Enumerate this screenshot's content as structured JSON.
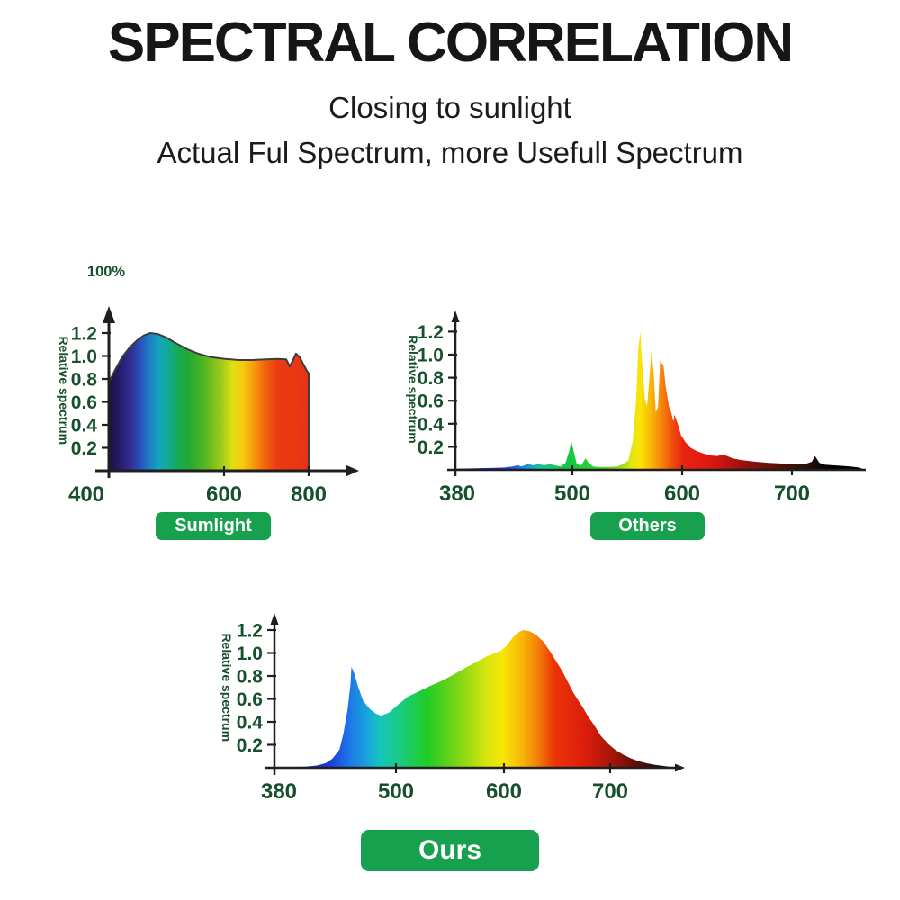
{
  "header": {
    "title": "SPECTRAL CORRELATION",
    "subtitle1": "Closing to sunlight",
    "subtitle2": "Actual Ful Spectrum, more Usefull Spectrum"
  },
  "colors": {
    "label_green": "#17502c",
    "button_green": "#17a04d",
    "axis": "#1f1f1f",
    "background": "#ffffff"
  },
  "chart_data": [
    {
      "id": "sunlight",
      "type": "area",
      "label": "Sumlight",
      "ylabel": "Relative spectrum",
      "top_left_label": "100%",
      "ylim": [
        0,
        1.3
      ],
      "y_ticks": [
        "1.2",
        "1.0",
        "0.8",
        "0.6",
        "0.4",
        "0.2"
      ],
      "x_ticks": [
        "400",
        "600",
        "800"
      ],
      "points": [
        [
          400,
          0.77
        ],
        [
          411,
          0.88
        ],
        [
          423,
          0.99
        ],
        [
          437,
          1.08
        ],
        [
          450,
          1.14
        ],
        [
          461,
          1.18
        ],
        [
          472,
          1.2
        ],
        [
          486,
          1.19
        ],
        [
          500,
          1.16
        ],
        [
          517,
          1.11
        ],
        [
          536,
          1.06
        ],
        [
          555,
          1.02
        ],
        [
          577,
          0.99
        ],
        [
          602,
          0.975
        ],
        [
          634,
          0.965
        ],
        [
          666,
          0.965
        ],
        [
          698,
          0.97
        ],
        [
          726,
          0.975
        ],
        [
          747,
          0.97
        ],
        [
          755,
          0.91
        ],
        [
          762,
          0.955
        ],
        [
          770,
          1.02
        ],
        [
          779,
          0.99
        ],
        [
          787,
          0.93
        ],
        [
          796,
          0.87
        ],
        [
          800,
          0.85
        ]
      ],
      "gradient": [
        [
          0,
          "#1b0f3e"
        ],
        [
          0.05,
          "#261a66"
        ],
        [
          0.1,
          "#2f2a8c"
        ],
        [
          0.15,
          "#2c4ab4"
        ],
        [
          0.2,
          "#1f7ac8"
        ],
        [
          0.25,
          "#14a4bc"
        ],
        [
          0.3,
          "#12ab8e"
        ],
        [
          0.35,
          "#17aa52"
        ],
        [
          0.4,
          "#22a834"
        ],
        [
          0.48,
          "#55b622"
        ],
        [
          0.56,
          "#9cc81a"
        ],
        [
          0.62,
          "#e0e012"
        ],
        [
          0.67,
          "#f6cb0e"
        ],
        [
          0.72,
          "#f7a00c"
        ],
        [
          0.78,
          "#f3650e"
        ],
        [
          0.84,
          "#ec3c12"
        ],
        [
          1,
          "#e73314"
        ]
      ]
    },
    {
      "id": "others",
      "type": "area",
      "label": "Others",
      "ylabel": "Relative spectrum",
      "ylim": [
        0,
        1.3
      ],
      "y_ticks": [
        "1.2",
        "1.0",
        "0.8",
        "0.6",
        "0.4",
        "0.2"
      ],
      "x_ticks": [
        "380",
        "500",
        "600",
        "700"
      ],
      "points": [
        [
          380,
          0.01
        ],
        [
          392,
          0.012
        ],
        [
          406,
          0.015
        ],
        [
          420,
          0.018
        ],
        [
          430,
          0.02
        ],
        [
          439,
          0.03
        ],
        [
          444,
          0.04
        ],
        [
          448,
          0.03
        ],
        [
          454,
          0.05
        ],
        [
          460,
          0.04
        ],
        [
          465,
          0.05
        ],
        [
          471,
          0.04
        ],
        [
          477,
          0.05
        ],
        [
          482,
          0.04
        ],
        [
          488,
          0.03
        ],
        [
          493,
          0.06
        ],
        [
          497,
          0.17
        ],
        [
          499,
          0.25
        ],
        [
          501,
          0.17
        ],
        [
          504,
          0.05
        ],
        [
          508,
          0.04
        ],
        [
          512,
          0.1
        ],
        [
          515,
          0.06
        ],
        [
          519,
          0.03
        ],
        [
          524,
          0.025
        ],
        [
          533,
          0.025
        ],
        [
          541,
          0.03
        ],
        [
          546,
          0.05
        ],
        [
          551,
          0.08
        ],
        [
          555,
          0.25
        ],
        [
          558,
          0.6
        ],
        [
          560,
          1.05
        ],
        [
          562,
          1.2
        ],
        [
          563,
          1.0
        ],
        [
          566,
          0.62
        ],
        [
          568,
          0.55
        ],
        [
          571,
          0.9
        ],
        [
          572,
          1.03
        ],
        [
          574,
          0.85
        ],
        [
          576,
          0.5
        ],
        [
          578,
          0.55
        ],
        [
          580,
          0.95
        ],
        [
          583,
          0.9
        ],
        [
          585,
          0.72
        ],
        [
          588,
          0.55
        ],
        [
          590,
          0.5
        ],
        [
          592,
          0.42
        ],
        [
          593,
          0.48
        ],
        [
          596,
          0.4
        ],
        [
          599,
          0.3
        ],
        [
          603,
          0.24
        ],
        [
          608,
          0.19
        ],
        [
          614,
          0.16
        ],
        [
          620,
          0.14
        ],
        [
          626,
          0.125
        ],
        [
          632,
          0.12
        ],
        [
          637,
          0.13
        ],
        [
          641,
          0.12
        ],
        [
          646,
          0.1
        ],
        [
          654,
          0.085
        ],
        [
          667,
          0.07
        ],
        [
          679,
          0.06
        ],
        [
          691,
          0.055
        ],
        [
          704,
          0.05
        ],
        [
          712,
          0.05
        ],
        [
          718,
          0.07
        ],
        [
          721,
          0.12
        ],
        [
          725,
          0.06
        ],
        [
          730,
          0.045
        ],
        [
          737,
          0.04
        ],
        [
          745,
          0.035
        ],
        [
          753,
          0.03
        ],
        [
          761,
          0.02
        ],
        [
          764,
          0.01
        ]
      ],
      "gradient": [
        [
          0,
          "#2121b4"
        ],
        [
          0.1,
          "#2233cc"
        ],
        [
          0.14,
          "#2257e0"
        ],
        [
          0.17,
          "#1b86e0"
        ],
        [
          0.2,
          "#16bba8"
        ],
        [
          0.24,
          "#1cc46a"
        ],
        [
          0.28,
          "#12c83e"
        ],
        [
          0.33,
          "#2fcc3a"
        ],
        [
          0.4,
          "#86d61c"
        ],
        [
          0.435,
          "#e6e610"
        ],
        [
          0.455,
          "#fae305"
        ],
        [
          0.48,
          "#f9b808"
        ],
        [
          0.51,
          "#f57f0a"
        ],
        [
          0.535,
          "#ef4a0d"
        ],
        [
          0.56,
          "#e8250f"
        ],
        [
          0.62,
          "#df1810"
        ],
        [
          0.66,
          "#c21511"
        ],
        [
          0.72,
          "#8e120c"
        ],
        [
          0.8,
          "#53100a"
        ],
        [
          0.87,
          "#241007"
        ],
        [
          0.92,
          "#000000"
        ],
        [
          1,
          "#000000"
        ]
      ]
    },
    {
      "id": "ours",
      "type": "area",
      "label": "Ours",
      "ylabel": "Relative spectrum",
      "ylim": [
        0,
        1.3
      ],
      "y_ticks": [
        "1.2",
        "1.0",
        "0.8",
        "0.6",
        "0.4",
        "0.2"
      ],
      "x_ticks": [
        "380",
        "500",
        "600",
        "700"
      ],
      "points": [
        [
          382,
          0
        ],
        [
          395,
          0.005
        ],
        [
          409,
          0.01
        ],
        [
          420,
          0.02
        ],
        [
          429,
          0.04
        ],
        [
          436,
          0.08
        ],
        [
          443,
          0.16
        ],
        [
          447,
          0.3
        ],
        [
          451,
          0.5
        ],
        [
          454,
          0.72
        ],
        [
          455,
          0.88
        ],
        [
          458,
          0.82
        ],
        [
          462,
          0.7
        ],
        [
          467,
          0.58
        ],
        [
          474,
          0.51
        ],
        [
          480,
          0.47
        ],
        [
          485,
          0.455
        ],
        [
          493,
          0.48
        ],
        [
          502,
          0.55
        ],
        [
          511,
          0.62
        ],
        [
          520,
          0.66
        ],
        [
          531,
          0.71
        ],
        [
          543,
          0.76
        ],
        [
          553,
          0.81
        ],
        [
          564,
          0.87
        ],
        [
          574,
          0.92
        ],
        [
          584,
          0.97
        ],
        [
          592,
          1.0
        ],
        [
          597,
          1.02
        ],
        [
          602,
          1.06
        ],
        [
          607,
          1.12
        ],
        [
          612,
          1.17
        ],
        [
          618,
          1.2
        ],
        [
          624,
          1.19
        ],
        [
          630,
          1.16
        ],
        [
          637,
          1.1
        ],
        [
          643,
          1.02
        ],
        [
          649,
          0.93
        ],
        [
          655,
          0.84
        ],
        [
          660,
          0.75
        ],
        [
          665,
          0.66
        ],
        [
          669,
          0.6
        ],
        [
          674,
          0.53
        ],
        [
          679,
          0.45
        ],
        [
          685,
          0.37
        ],
        [
          691,
          0.28
        ],
        [
          698,
          0.21
        ],
        [
          705,
          0.155
        ],
        [
          712,
          0.115
        ],
        [
          719,
          0.085
        ],
        [
          726,
          0.06
        ],
        [
          734,
          0.04
        ],
        [
          742,
          0.025
        ],
        [
          751,
          0.015
        ],
        [
          757,
          0.008
        ],
        [
          759,
          0
        ]
      ],
      "gradient": [
        [
          0,
          "#1a17a8"
        ],
        [
          0.1,
          "#1c2cc4"
        ],
        [
          0.14,
          "#1c44dc"
        ],
        [
          0.18,
          "#1e74e8"
        ],
        [
          0.23,
          "#18a6dc"
        ],
        [
          0.26,
          "#16c6bc"
        ],
        [
          0.32,
          "#19cc74"
        ],
        [
          0.38,
          "#22cc24"
        ],
        [
          0.46,
          "#82d614"
        ],
        [
          0.53,
          "#d8e60e"
        ],
        [
          0.57,
          "#f8e606"
        ],
        [
          0.62,
          "#f8b406"
        ],
        [
          0.66,
          "#f37d08"
        ],
        [
          0.7,
          "#ec3408"
        ],
        [
          0.78,
          "#da1d0b"
        ],
        [
          0.85,
          "#a2140a"
        ],
        [
          0.92,
          "#4f0f08"
        ],
        [
          0.97,
          "#190b05"
        ],
        [
          1,
          "#000000"
        ]
      ]
    }
  ]
}
